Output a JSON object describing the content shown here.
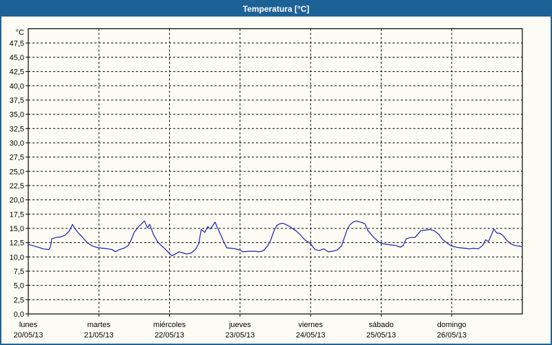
{
  "window": {
    "title": "Temperatura [°C]"
  },
  "colors": {
    "titlebar_bg": "#1d6296",
    "titlebar_text": "#ffffff",
    "window_border": "#1d6296",
    "plot_background": "#fcfcf5",
    "grid_color": "#000000",
    "axis_color": "#000000",
    "series_color": "#1a1ab0"
  },
  "chart_data": {
    "type": "line",
    "title": "Temperatura [°C]",
    "y_axis_unit_label": "°C",
    "y_min": 0,
    "y_max": 50,
    "y_tick_step": 2.5,
    "y_ticks": [
      {
        "value": 0,
        "label": "0,0"
      },
      {
        "value": 2.5,
        "label": "2,5"
      },
      {
        "value": 5,
        "label": "5,0"
      },
      {
        "value": 7.5,
        "label": "7,5"
      },
      {
        "value": 10,
        "label": "10,0"
      },
      {
        "value": 12.5,
        "label": "12,5"
      },
      {
        "value": 15,
        "label": "15,0"
      },
      {
        "value": 17.5,
        "label": "17,5"
      },
      {
        "value": 20,
        "label": "20,0"
      },
      {
        "value": 22.5,
        "label": "22,5"
      },
      {
        "value": 25,
        "label": "25,0"
      },
      {
        "value": 27.5,
        "label": "27,5"
      },
      {
        "value": 30,
        "label": "30,0"
      },
      {
        "value": 32.5,
        "label": "32,5"
      },
      {
        "value": 35,
        "label": "35,0"
      },
      {
        "value": 37.5,
        "label": "37,5"
      },
      {
        "value": 40,
        "label": "40,0"
      },
      {
        "value": 42.5,
        "label": "42,5"
      },
      {
        "value": 45,
        "label": "45,0"
      },
      {
        "value": 47.5,
        "label": "47,5"
      }
    ],
    "x_days": [
      {
        "name": "lunes",
        "date": "20/05/13"
      },
      {
        "name": "martes",
        "date": "21/05/13"
      },
      {
        "name": "miércoles",
        "date": "22/05/13"
      },
      {
        "name": "jueves",
        "date": "23/05/13"
      },
      {
        "name": "viernes",
        "date": "24/05/13"
      },
      {
        "name": "sábado",
        "date": "25/05/13"
      },
      {
        "name": "domingo",
        "date": "26/05/13"
      }
    ],
    "x_hours_total": 168,
    "grid": "dashed",
    "legend": "none",
    "series": [
      {
        "name": "Temperatura",
        "color": "#1a1ab0",
        "x_hours": [
          0,
          2,
          4,
          5,
          7,
          7.5,
          8,
          9.5,
          11,
          12.5,
          14,
          15,
          15.7,
          17,
          18.5,
          20,
          21.5,
          23,
          24,
          25.5,
          27,
          28.5,
          29.6,
          31,
          32.5,
          34,
          35,
          36,
          37.5,
          39.5,
          40.5,
          41.3,
          42.5,
          43.8,
          45,
          46.5,
          48,
          48.8,
          50,
          51.3,
          52.5,
          54,
          55.5,
          57,
          58,
          58.8,
          60,
          61,
          62,
          63.5,
          64.5,
          65.5,
          66.5,
          67.5,
          69,
          70.5,
          72,
          73,
          75,
          77,
          78.5,
          80,
          81.5,
          82.5,
          83.5,
          84.5,
          85.5,
          86.5,
          87.5,
          89,
          90,
          91,
          92.5,
          94,
          95.5,
          96,
          97.5,
          99,
          100.5,
          102,
          103.5,
          105,
          106.5,
          107.5,
          108.5,
          109.5,
          110.5,
          111.5,
          113,
          114.5,
          115.5,
          117.5,
          119,
          120,
          121.5,
          123.5,
          125,
          126.5,
          127.5,
          128.5,
          130,
          131.5,
          132.5,
          133.5,
          135,
          136.5,
          138,
          139.5,
          141,
          142.5,
          144,
          145.5,
          147,
          148.5,
          150,
          151.5,
          153,
          154.5,
          155.5,
          156.5,
          157.5,
          158.3,
          159.3,
          160.5,
          161.5,
          162.5,
          164,
          165.5,
          167,
          168
        ],
        "values": [
          12.2,
          11.9,
          11.6,
          11.4,
          11.3,
          11.7,
          13.2,
          13.4,
          13.5,
          13.8,
          14.6,
          15.7,
          15.1,
          14.2,
          13.4,
          12.5,
          12.0,
          11.7,
          11.6,
          11.5,
          11.4,
          11.3,
          10.9,
          11.3,
          11.5,
          12.0,
          13.0,
          14.3,
          15.3,
          16.3,
          15.1,
          15.7,
          14.0,
          12.8,
          12.1,
          11.4,
          10.6,
          10.2,
          10.5,
          10.9,
          10.7,
          10.5,
          10.7,
          11.4,
          12.4,
          14.8,
          14.3,
          15.3,
          14.9,
          16.1,
          14.9,
          13.8,
          12.6,
          11.6,
          11.5,
          11.4,
          11.2,
          10.9,
          11.0,
          11.0,
          10.9,
          11.1,
          12.0,
          13.0,
          14.5,
          15.5,
          15.8,
          15.9,
          15.7,
          15.3,
          14.9,
          14.6,
          13.9,
          13.0,
          12.5,
          12.3,
          11.3,
          11.1,
          11.4,
          10.9,
          11.0,
          11.2,
          11.9,
          13.4,
          14.9,
          15.7,
          16.1,
          16.3,
          16.1,
          15.8,
          14.6,
          13.4,
          12.7,
          12.4,
          12.2,
          12.1,
          12.0,
          11.7,
          12.0,
          13.2,
          13.4,
          13.4,
          14.0,
          14.6,
          14.7,
          14.8,
          14.6,
          14.0,
          13.0,
          12.4,
          11.9,
          11.7,
          11.6,
          11.5,
          11.4,
          11.5,
          11.4,
          12.0,
          13.0,
          12.7,
          13.9,
          14.9,
          14.2,
          14.1,
          13.7,
          13.0,
          12.3,
          12.0,
          11.9,
          11.8
        ]
      }
    ]
  }
}
